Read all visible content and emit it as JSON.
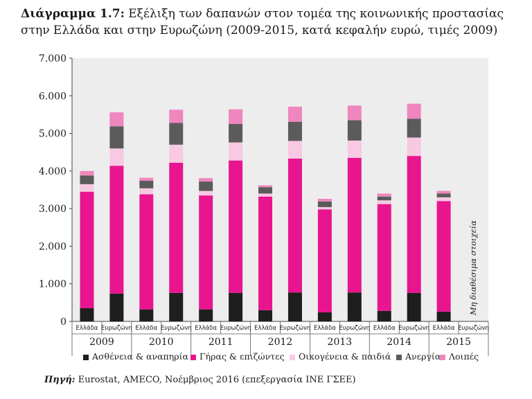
{
  "title_prefix": "Διάγραμμα 1.7:",
  "title_text": "Εξέλιξη των δαπανών στον τομέα της κοινωνικής προστασίας στην Ελλάδα και στην Ευρωζώνη (2009-2015, κατά κεφαλήν ευρώ, τιμές 2009)",
  "source_label": "Πηγή:",
  "source_text": "Eurostat, AMECO, Νοέμβριος 2016 (επεξεργασία ΙΝΕ ΓΣΕΕ)",
  "na_note": "Μη διαθέσιμα στοιχεία",
  "chart_data": {
    "type": "bar",
    "stacked": true,
    "title": "Εξέλιξη των δαπανών στον τομέα της κοινωνικής προστασίας στην Ελλάδα και στην Ευρωζώνη (2009-2015, κατά κεφαλήν ευρώ, τιμές 2009)",
    "xlabel": "",
    "ylabel": "",
    "ylim": [
      0,
      7000
    ],
    "yticks": [
      0,
      1000,
      2000,
      3000,
      4000,
      5000,
      6000,
      7000
    ],
    "ytick_labels": [
      "0",
      "1.000",
      "2.000",
      "3.000",
      "4.000",
      "5.000",
      "6.000",
      "7.000"
    ],
    "groups": [
      "2009",
      "2010",
      "2011",
      "2012",
      "2013",
      "2014",
      "2015"
    ],
    "subcategories": [
      "Ελλάδα",
      "Ευρωζώνη"
    ],
    "categories": [
      "Ελλάδα 2009",
      "Ευρωζώνη 2009",
      "Ελλάδα 2010",
      "Ευρωζώνη 2010",
      "Ελλάδα 2011",
      "Ευρωζώνη 2011",
      "Ελλάδα 2012",
      "Ευρωζώνη 2012",
      "Ελλάδα 2013",
      "Ευρωζώνη 2013",
      "Ελλάδα 2014",
      "Ευρωζώνη 2014",
      "Ελλάδα 2015",
      "Ευρωζώνη 2015"
    ],
    "series": [
      {
        "name": "Ασθένεια & αναπηρία",
        "color": "#1e1e1e",
        "values": [
          350,
          740,
          320,
          760,
          320,
          760,
          300,
          770,
          240,
          770,
          280,
          760,
          260,
          null
        ]
      },
      {
        "name": "Γήρας & επιζώντες",
        "color": "#e8158f",
        "values": [
          3100,
          3400,
          3060,
          3460,
          3030,
          3520,
          3020,
          3560,
          2740,
          3580,
          2840,
          3640,
          2940,
          null
        ]
      },
      {
        "name": "Οικογένεια & παιδιά",
        "color": "#f7c9e3",
        "values": [
          200,
          460,
          160,
          480,
          120,
          480,
          80,
          470,
          60,
          460,
          100,
          490,
          100,
          null
        ]
      },
      {
        "name": "Ανεργία",
        "color": "#5b5b5b",
        "values": [
          230,
          590,
          200,
          580,
          250,
          490,
          170,
          510,
          150,
          540,
          100,
          500,
          100,
          null
        ]
      },
      {
        "name": "Λοιπές",
        "color": "#ef86bd",
        "values": [
          120,
          370,
          80,
          350,
          90,
          390,
          50,
          400,
          70,
          390,
          80,
          400,
          70,
          null
        ]
      }
    ],
    "legend_position": "bottom",
    "annotations": [
      "Μη διαθέσιμα στοιχεία"
    ]
  }
}
